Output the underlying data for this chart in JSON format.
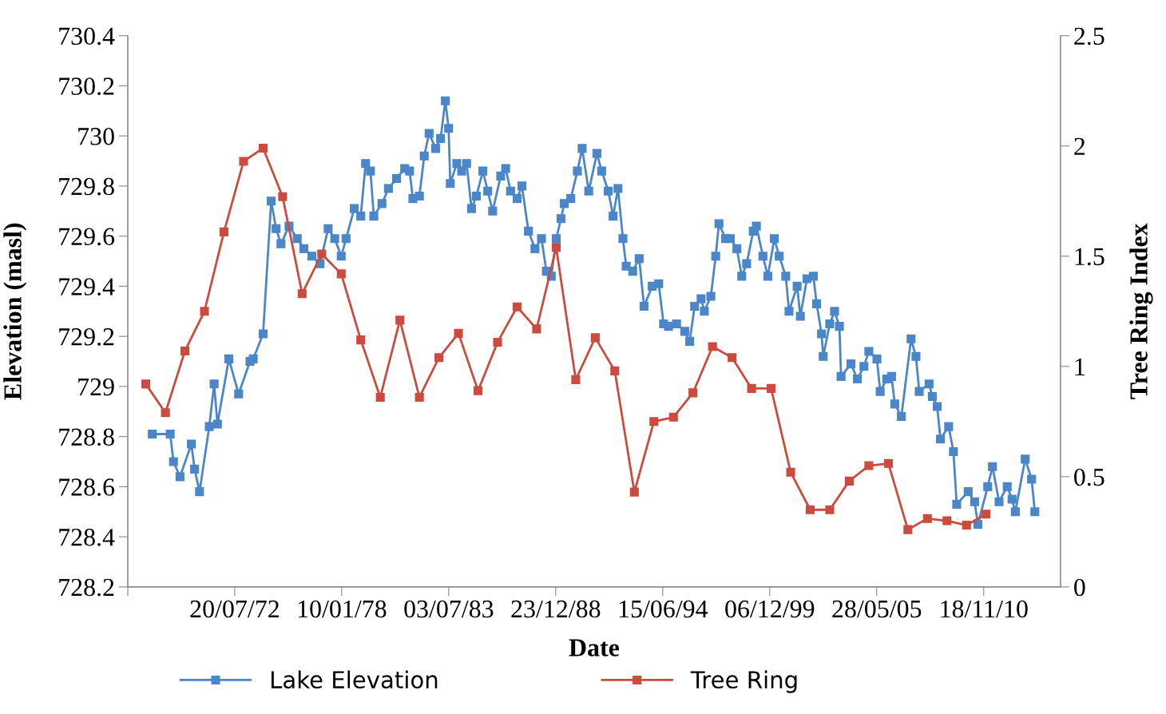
{
  "chart_data": {
    "type": "line",
    "xlabel": "Date",
    "ylabel": "Elevation (masl)",
    "y2label": "Tree Ring Index",
    "xlim": [
      "1967-01-29",
      "2014-10-23"
    ],
    "xticks": [
      {
        "value": "1967-01-29",
        "label": null
      },
      {
        "value": "1972-07-20",
        "label": "20/07/72"
      },
      {
        "value": "1978-01-10",
        "label": "10/01/78"
      },
      {
        "value": "1983-07-03",
        "label": "03/07/83"
      },
      {
        "value": "1988-12-23",
        "label": "23/12/88"
      },
      {
        "value": "1994-06-15",
        "label": "15/06/94"
      },
      {
        "value": "1999-12-06",
        "label": "06/12/99"
      },
      {
        "value": "2005-05-28",
        "label": "28/05/05"
      },
      {
        "value": "2010-11-18",
        "label": "18/11/10"
      }
    ],
    "ylim": [
      728.2,
      730.4
    ],
    "yticks": [
      728.2,
      728.4,
      728.6,
      728.8,
      729,
      729.2,
      729.4,
      729.6,
      729.8,
      730,
      730.2,
      730.4
    ],
    "y2lim": [
      0,
      2.5
    ],
    "y2ticks": [
      0,
      0.5,
      1,
      1.5,
      2,
      2.5
    ],
    "grid": false,
    "legend": "bottom",
    "marker": "square",
    "line_style": "solid",
    "series": [
      {
        "name": "Lake Elevation",
        "color": "#4a86c8",
        "x": [
          "1968-05",
          "1969-04",
          "1969-06",
          "1969-10",
          "1970-05",
          "1970-07",
          "1970-10",
          "1971-04",
          "1971-07",
          "1971-09",
          "1972-04",
          "1972-10",
          "1973-05",
          "1973-07",
          "1974-01",
          "1974-06",
          "1974-09",
          "1974-12",
          "1975-05",
          "1975-10",
          "1976-02",
          "1976-07",
          "1976-12",
          "1977-05",
          "1977-09",
          "1978-01",
          "1978-04",
          "1978-09",
          "1979-01",
          "1979-04",
          "1979-07",
          "1979-09",
          "1980-02",
          "1980-06",
          "1980-11",
          "1981-04",
          "1981-07",
          "1981-09",
          "1982-01",
          "1982-04",
          "1982-07",
          "1982-11",
          "1983-02",
          "1983-05",
          "1983-07",
          "1983-08",
          "1983-12",
          "1984-03",
          "1984-06",
          "1984-09",
          "1984-12",
          "1985-04",
          "1985-07",
          "1985-10",
          "1986-03",
          "1986-06",
          "1986-09",
          "1987-01",
          "1987-04",
          "1987-08",
          "1987-12",
          "1988-04",
          "1988-07",
          "1988-10",
          "1989-01",
          "1989-04",
          "1989-06",
          "1989-10",
          "1990-02",
          "1990-05",
          "1990-09",
          "1991-02",
          "1991-05",
          "1991-09",
          "1991-12",
          "1992-03",
          "1992-06",
          "1992-08",
          "1992-12",
          "1993-04",
          "1993-07",
          "1993-12",
          "1994-04",
          "1994-07",
          "1994-10",
          "1995-03",
          "1995-08",
          "1995-11",
          "1996-02",
          "1996-06",
          "1996-08",
          "1996-12",
          "1997-03",
          "1997-05",
          "1997-09",
          "1997-12",
          "1998-04",
          "1998-07",
          "1998-10",
          "1999-02",
          "1999-04",
          "1999-08",
          "1999-11",
          "2000-03",
          "2000-06",
          "2000-10",
          "2000-12",
          "2001-05",
          "2001-07",
          "2001-11",
          "2002-03",
          "2002-05",
          "2002-08",
          "2002-09",
          "2003-01",
          "2003-04",
          "2003-07",
          "2003-08",
          "2004-02",
          "2004-06",
          "2004-10",
          "2005-01",
          "2005-06",
          "2005-08",
          "2005-12",
          "2006-03",
          "2006-05",
          "2006-09",
          "2007-03",
          "2007-06",
          "2007-08",
          "2008-02",
          "2008-04",
          "2008-07",
          "2008-09",
          "2009-02",
          "2009-05",
          "2009-07",
          "2010-02",
          "2010-06",
          "2010-08",
          "2011-02",
          "2011-05",
          "2011-09",
          "2012-02",
          "2012-05",
          "2012-07",
          "2013-01",
          "2013-05",
          "2013-07"
        ],
        "values": [
          728.81,
          728.81,
          728.7,
          728.64,
          728.77,
          728.67,
          728.58,
          728.84,
          729.01,
          728.85,
          729.11,
          728.97,
          729.1,
          729.11,
          729.21,
          729.74,
          729.63,
          729.57,
          729.64,
          729.59,
          729.55,
          729.52,
          729.49,
          729.63,
          729.59,
          729.52,
          729.59,
          729.71,
          729.68,
          729.89,
          729.86,
          729.68,
          729.73,
          729.79,
          729.83,
          729.87,
          729.86,
          729.75,
          729.76,
          729.92,
          730.01,
          729.95,
          729.99,
          730.14,
          730.03,
          729.81,
          729.89,
          729.86,
          729.89,
          729.71,
          729.76,
          729.86,
          729.78,
          729.7,
          729.84,
          729.87,
          729.78,
          729.75,
          729.8,
          729.62,
          729.55,
          729.59,
          729.46,
          729.44,
          729.59,
          729.67,
          729.73,
          729.75,
          729.86,
          729.95,
          729.78,
          729.93,
          729.86,
          729.78,
          729.68,
          729.79,
          729.59,
          729.48,
          729.46,
          729.51,
          729.32,
          729.4,
          729.41,
          729.25,
          729.24,
          729.25,
          729.22,
          729.18,
          729.32,
          729.35,
          729.3,
          729.36,
          729.52,
          729.65,
          729.59,
          729.59,
          729.55,
          729.44,
          729.49,
          729.62,
          729.64,
          729.52,
          729.44,
          729.59,
          729.52,
          729.44,
          729.3,
          729.4,
          729.28,
          729.43,
          729.44,
          729.33,
          729.21,
          729.12,
          729.25,
          729.3,
          729.24,
          729.04,
          729.09,
          729.03,
          729.08,
          729.14,
          729.11,
          728.98,
          729.03,
          729.04,
          728.93,
          728.88,
          729.19,
          729.12,
          728.98,
          729.01,
          728.96,
          728.92,
          728.79,
          728.84,
          728.74,
          728.53,
          728.58,
          728.54,
          728.45,
          728.6,
          728.68,
          728.54,
          728.6,
          728.55,
          728.5,
          728.71,
          728.63,
          728.5
        ]
      },
      {
        "name": "Tree Ring",
        "color": "#cc4a3e",
        "axis": "y2",
        "x": [
          "1968",
          "1969",
          "1970",
          "1971",
          "1972",
          "1973",
          "1974",
          "1975",
          "1976",
          "1977",
          "1978",
          "1979",
          "1980",
          "1981",
          "1982",
          "1983",
          "1984",
          "1985",
          "1986",
          "1987",
          "1988",
          "1989",
          "1990",
          "1991",
          "1992",
          "1993",
          "1994",
          "1995",
          "1996",
          "1997",
          "1998",
          "1999",
          "2000",
          "2001",
          "2002",
          "2003",
          "2004",
          "2005",
          "2006",
          "2007",
          "2008",
          "2009",
          "2010",
          "2011"
        ],
        "values": [
          0.92,
          0.79,
          1.07,
          1.25,
          1.61,
          1.93,
          1.99,
          1.77,
          1.33,
          1.51,
          1.42,
          1.12,
          0.86,
          1.21,
          0.86,
          1.04,
          1.15,
          0.89,
          1.11,
          1.27,
          1.17,
          1.54,
          0.94,
          1.13,
          0.98,
          0.43,
          0.75,
          0.77,
          0.88,
          1.09,
          1.04,
          0.9,
          0.9,
          0.52,
          0.35,
          0.35,
          0.48,
          0.55,
          0.56,
          0.26,
          0.31,
          0.3,
          0.28,
          0.33
        ]
      }
    ]
  }
}
